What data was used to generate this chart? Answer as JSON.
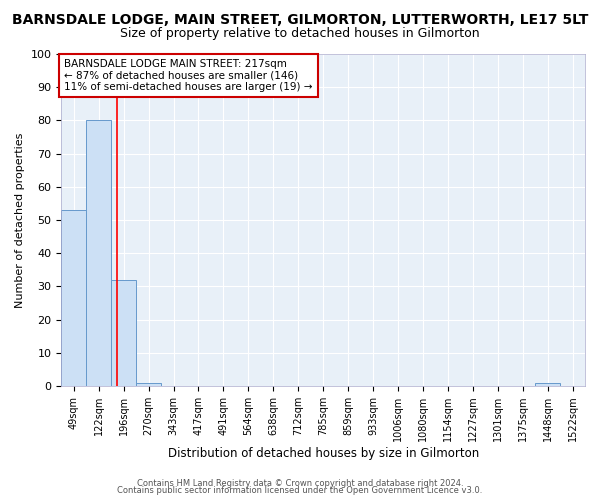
{
  "title": "BARNSDALE LODGE, MAIN STREET, GILMORTON, LUTTERWORTH, LE17 5LT",
  "subtitle": "Size of property relative to detached houses in Gilmorton",
  "xlabel": "Distribution of detached houses by size in Gilmorton",
  "ylabel": "Number of detached properties",
  "bar_labels": [
    "49sqm",
    "122sqm",
    "196sqm",
    "270sqm",
    "343sqm",
    "417sqm",
    "491sqm",
    "564sqm",
    "638sqm",
    "712sqm",
    "785sqm",
    "859sqm",
    "933sqm",
    "1006sqm",
    "1080sqm",
    "1154sqm",
    "1227sqm",
    "1301sqm",
    "1375sqm",
    "1448sqm",
    "1522sqm"
  ],
  "bar_values": [
    53,
    80,
    32,
    1,
    0,
    0,
    0,
    0,
    0,
    0,
    0,
    0,
    0,
    0,
    0,
    0,
    0,
    0,
    0,
    1,
    0
  ],
  "bar_color": "#cce0f5",
  "bar_edge_color": "#6699cc",
  "bar_width": 1.0,
  "ylim": [
    0,
    100
  ],
  "yticks": [
    0,
    10,
    20,
    30,
    40,
    50,
    60,
    70,
    80,
    90,
    100
  ],
  "red_line_x": 1.72,
  "annotation_text": "BARNSDALE LODGE MAIN STREET: 217sqm\n← 87% of detached houses are smaller (146)\n11% of semi-detached houses are larger (19) →",
  "annotation_box_color": "#ffffff",
  "annotation_border_color": "#cc0000",
  "footer_line1": "Contains HM Land Registry data © Crown copyright and database right 2024.",
  "footer_line2": "Contains public sector information licensed under the Open Government Licence v3.0.",
  "background_color": "#ffffff",
  "plot_bg_color": "#e8f0f8",
  "grid_color": "#ffffff",
  "title_fontsize": 10,
  "subtitle_fontsize": 9
}
